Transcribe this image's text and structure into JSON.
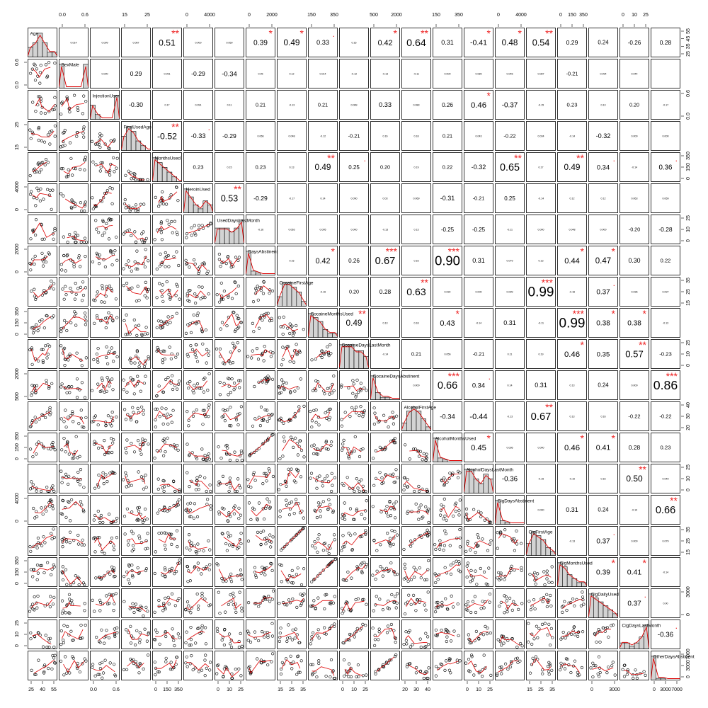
{
  "chart_data": {
    "type": "scatter",
    "title": "",
    "variables": [
      {
        "label": "Age",
        "ticks": [
          "25",
          "40",
          "55"
        ],
        "ticks_side": "bottom",
        "hist": [
          2,
          3,
          5,
          3,
          1,
          1
        ]
      },
      {
        "label": "SexMale",
        "ticks": [
          "0.0",
          "0.6"
        ],
        "ticks_side": "top",
        "hist": [
          4,
          0,
          0,
          0,
          0,
          4
        ]
      },
      {
        "label": "InjectionUser",
        "ticks": [
          "0.0",
          "0.6"
        ],
        "ticks_side": "right",
        "hist": [
          3,
          1,
          0,
          0,
          0,
          5
        ]
      },
      {
        "label": "FirstUsedAge",
        "ticks": [
          "15",
          "25"
        ],
        "ticks_side": "top",
        "hist": [
          3,
          5,
          4,
          2,
          1,
          0
        ]
      },
      {
        "label": "MonthsUsed",
        "ticks": [
          "0",
          "150",
          "350"
        ],
        "ticks_side": "bottom",
        "hist": [
          5,
          4,
          3,
          2,
          1,
          0
        ]
      },
      {
        "label": "HeroinUsed",
        "ticks": [
          "0",
          "4000"
        ],
        "ticks_side": "top",
        "hist": [
          6,
          4,
          2,
          1,
          3,
          2
        ]
      },
      {
        "label": "UsedDaysLastMonth",
        "ticks": [
          "0",
          "10",
          "25"
        ],
        "ticks_side": "bottom",
        "hist": [
          4,
          4,
          4,
          3,
          4,
          6
        ]
      },
      {
        "label": "DaysAbstinent",
        "ticks": [
          "0",
          "2000"
        ],
        "ticks_side": "top",
        "hist": [
          12,
          2,
          1,
          0,
          0,
          0
        ]
      },
      {
        "label": "CocaineFirstAge",
        "ticks": [
          "15",
          "25",
          "35"
        ],
        "ticks_side": "bottom",
        "hist": [
          2,
          5,
          5,
          4,
          3,
          1
        ]
      },
      {
        "label": "CocaineMonthsUsed",
        "ticks": [
          "150",
          "350"
        ],
        "ticks_side": "top",
        "hist": [
          6,
          5,
          4,
          2,
          1,
          1
        ]
      },
      {
        "label": "CocaineDaysLastMonth",
        "ticks": [
          "0",
          "10",
          "25"
        ],
        "ticks_side": "bottom",
        "hist": [
          4,
          4,
          4,
          3,
          3,
          2
        ]
      },
      {
        "label": "CocaineDaysAbstinent",
        "ticks": [
          "500",
          "2000"
        ],
        "ticks_side": "top",
        "hist": [
          10,
          3,
          1,
          1,
          0,
          0
        ]
      },
      {
        "label": "AlcoholFirstAge",
        "ticks": [
          "20",
          "30",
          "40"
        ],
        "ticks_side": "bottom",
        "hist": [
          2,
          5,
          6,
          5,
          3,
          1
        ]
      },
      {
        "label": "AlcoholMonthsUsed",
        "ticks": [
          "150",
          "350"
        ],
        "ticks_side": "top",
        "hist": [
          12,
          2,
          1,
          0,
          0,
          0
        ]
      },
      {
        "label": "AlcoholDaysLastMonth",
        "ticks": [
          "0",
          "10",
          "25"
        ],
        "ticks_side": "bottom",
        "hist": [
          5,
          5,
          3,
          2,
          4,
          3
        ]
      },
      {
        "label": "CigDaysAbstinent",
        "ticks": [
          "0",
          "4000"
        ],
        "ticks_side": "top",
        "hist": [
          14,
          2,
          1,
          0,
          0,
          0
        ]
      },
      {
        "label": "CigFirstAge",
        "ticks": [
          "15",
          "25",
          "35"
        ],
        "ticks_side": "bottom",
        "hist": [
          3,
          6,
          5,
          4,
          2,
          1
        ]
      },
      {
        "label": "CigMonthsUsed",
        "ticks": [
          "0",
          "150",
          "350"
        ],
        "ticks_side": "top",
        "hist": [
          6,
          5,
          3,
          2,
          1,
          1
        ]
      },
      {
        "label": "CigDailyUsed",
        "ticks": [
          "0",
          "3000"
        ],
        "ticks_side": "right",
        "hist": [
          6,
          5,
          4,
          3,
          2,
          1
        ]
      },
      {
        "label": "CigDaysLastMonth",
        "ticks": [
          "0",
          "10",
          "25"
        ],
        "ticks_side": "top",
        "hist": [
          2,
          2,
          1,
          2,
          4,
          8
        ]
      },
      {
        "label": "OtherDaysAbstinent",
        "ticks": [
          "0",
          "3000",
          "7000"
        ],
        "ticks_side": "bottom",
        "hist": [
          14,
          1,
          1,
          0,
          0,
          0
        ]
      }
    ],
    "right_axis_ticks": [
      [
        "55",
        "45",
        "35",
        "25"
      ],
      [
        "0.6",
        "0.0"
      ],
      [
        "0.6",
        "0.0"
      ],
      [
        "25",
        "15"
      ],
      [
        "350",
        "150",
        "0"
      ],
      [
        "4000",
        "0"
      ],
      [
        "25",
        "10",
        "0"
      ],
      [
        "2000",
        "0"
      ],
      [
        "35",
        "25",
        "15"
      ],
      [
        "350",
        "150",
        "0"
      ],
      [
        "25",
        "10",
        "0"
      ],
      [
        "2000",
        "500"
      ],
      [
        "40",
        "30",
        "20"
      ],
      [
        "350",
        "150",
        "0"
      ],
      [
        "25",
        "10",
        "0"
      ],
      [
        "4000",
        "0"
      ],
      [
        "35",
        "25",
        "15"
      ],
      [
        "350",
        "150",
        "0"
      ],
      [
        "3000",
        "0"
      ],
      [
        "25",
        "10",
        "0"
      ],
      [
        "7000",
        "3000",
        "0"
      ]
    ],
    "correlations": [
      [
        null,
        "0.014",
        "0.099",
        "0.067",
        "0.51",
        "0.000",
        "0.050",
        "0.39",
        "0.49",
        "0.33",
        "0.16",
        "0.42",
        "0.64",
        "0.31",
        "-0.41",
        "0.48",
        "0.54",
        "0.29",
        "0.24",
        "-0.26",
        "0.28"
      ],
      [
        null,
        null,
        "0.000",
        "0.29",
        "0.091",
        "-0.29",
        "-0.34",
        "0.05",
        "0.12",
        "0.014",
        "-0.12",
        "-0.13",
        "-0.11",
        "0.000",
        "0.089",
        "0.046",
        "0.087",
        "-0.21",
        "0.094",
        "0.044",
        null
      ],
      [
        null,
        null,
        null,
        "-0.30",
        "0.17",
        "0.091",
        "0.11",
        "0.21",
        "-0.13",
        "0.21",
        "0.089",
        "0.33",
        "0.083",
        "0.26",
        "0.46",
        "-0.37",
        "-0.15",
        "0.23",
        "0.13",
        "0.20",
        "-0.17"
      ],
      [
        null,
        null,
        null,
        null,
        "-0.52",
        "-0.33",
        "-0.29",
        "0.066",
        "0.048",
        "-0.12",
        "-0.21",
        "0.16",
        "0.18",
        "0.21",
        "0.043",
        "-0.22",
        "0.034",
        "-0.14",
        "-0.32",
        "0.000",
        "0.000"
      ],
      [
        null,
        null,
        null,
        null,
        null,
        "0.23",
        "0.15",
        "0.23",
        "0.13",
        "0.49",
        "0.25",
        "0.20",
        "0.19",
        "0.22",
        "-0.32",
        "0.65",
        "0.17",
        "0.49",
        "0.34",
        "-0.14",
        "0.36"
      ],
      [
        null,
        null,
        null,
        null,
        null,
        null,
        "0.53",
        "-0.29",
        "-0.17",
        "0.14",
        "0.090",
        "0.03",
        "0.069",
        "-0.31",
        "-0.21",
        "0.25",
        "-0.14",
        "0.12",
        "0.12",
        "0.063",
        "0.069"
      ],
      [
        null,
        null,
        null,
        null,
        null,
        null,
        null,
        "-0.16",
        "0.063",
        "0.005",
        "0.000",
        "-0.13",
        "0.13",
        "-0.25",
        "-0.25",
        "-0.11",
        "0.000",
        "0.048",
        "0.000",
        "-0.20",
        "-0.28"
      ],
      [
        null,
        null,
        null,
        null,
        null,
        null,
        null,
        null,
        "0.16",
        "0.42",
        "0.26",
        "0.67",
        "0.16",
        "0.90",
        "0.31",
        "0.079",
        "0.13",
        "0.44",
        "0.47",
        "0.30",
        "0.22"
      ],
      [
        null,
        null,
        null,
        null,
        null,
        null,
        null,
        null,
        null,
        "-0.16",
        "0.20",
        "0.28",
        "0.63",
        "0.034",
        "0.000",
        "0.099",
        "0.99",
        "-0.16",
        "0.37",
        "0.036",
        "0.097"
      ],
      [
        null,
        null,
        null,
        null,
        null,
        null,
        null,
        null,
        null,
        null,
        "0.49",
        "0.13",
        "0.18",
        "0.43",
        "-0.14",
        "0.31",
        "-0.11",
        "0.99",
        "0.38",
        "0.38",
        "-0.13"
      ],
      [
        null,
        null,
        null,
        null,
        null,
        null,
        null,
        null,
        null,
        null,
        null,
        "-0.14",
        "0.21",
        "0.056",
        "-0.21",
        "0.11",
        "0.19",
        "0.46",
        "0.35",
        "0.57",
        "-0.23"
      ],
      [
        null,
        null,
        null,
        null,
        null,
        null,
        null,
        null,
        null,
        null,
        null,
        null,
        "0.000",
        "0.66",
        "0.34",
        "0.14",
        "0.31",
        "0.13",
        "0.24",
        "0.000",
        "0.86"
      ],
      [
        null,
        null,
        null,
        null,
        null,
        null,
        null,
        null,
        null,
        null,
        null,
        null,
        null,
        "-0.34",
        "-0.44",
        "-0.13",
        "0.67",
        "0.13",
        "0.16",
        "-0.22",
        "-0.22"
      ],
      [
        null,
        null,
        null,
        null,
        null,
        null,
        null,
        null,
        null,
        null,
        null,
        null,
        null,
        null,
        "0.45",
        "0.036",
        "0.000",
        "0.46",
        "0.41",
        "0.28",
        "0.23"
      ],
      [
        null,
        null,
        null,
        null,
        null,
        null,
        null,
        null,
        null,
        null,
        null,
        null,
        null,
        null,
        null,
        "-0.36",
        "-0.15",
        "-0.10",
        "0.16",
        "0.50",
        "0.049"
      ],
      [
        null,
        null,
        null,
        null,
        null,
        null,
        null,
        null,
        null,
        null,
        null,
        null,
        null,
        null,
        null,
        null,
        "0.000",
        "0.31",
        "0.24",
        "-0.19",
        "0.66"
      ],
      [
        null,
        null,
        null,
        null,
        null,
        null,
        null,
        null,
        null,
        null,
        null,
        null,
        null,
        null,
        null,
        null,
        null,
        "-0.13",
        "0.37",
        "0.000",
        "0.079"
      ],
      [
        null,
        null,
        null,
        null,
        null,
        null,
        null,
        null,
        null,
        null,
        null,
        null,
        null,
        null,
        null,
        null,
        null,
        null,
        "0.39",
        "0.41",
        "-0.14"
      ],
      [
        null,
        null,
        null,
        null,
        null,
        null,
        null,
        null,
        null,
        null,
        null,
        null,
        null,
        null,
        null,
        null,
        null,
        null,
        null,
        "0.37",
        "0.00"
      ],
      [
        null,
        null,
        null,
        null,
        null,
        null,
        null,
        null,
        null,
        null,
        null,
        null,
        null,
        null,
        null,
        null,
        null,
        null,
        null,
        null,
        "-0.36"
      ],
      [
        null,
        null,
        null,
        null,
        null,
        null,
        null,
        null,
        null,
        null,
        null,
        null,
        null,
        null,
        null,
        null,
        null,
        null,
        null,
        null,
        null
      ]
    ],
    "significance": {
      "0-4": "**",
      "0-7": "*",
      "0-8": "*",
      "0-9": ".",
      "0-11": "*",
      "0-12": "**",
      "0-14": "*",
      "0-15": "*",
      "0-16": "**",
      "2-14": "*",
      "3-4": "**",
      "3-5": ".",
      "4-9": "**",
      "4-10": ".",
      "4-15": "**",
      "4-17": "**",
      "4-18": ".",
      "4-20": ".",
      "5-6": "**",
      "7-9": "*",
      "7-11": "***",
      "7-13": "***",
      "7-17": "*",
      "7-18": "*",
      "8-12": "**",
      "8-16": "***",
      "8-18": ".",
      "9-10": "**",
      "9-13": "*",
      "9-17": "***",
      "9-18": "*",
      "9-19": "*",
      "10-17": "*",
      "10-19": "**",
      "11-13": "***",
      "11-14": ".",
      "11-20": "***",
      "12-16": "**",
      "13-14": "*",
      "13-17": "*",
      "13-18": "*",
      "14-19": "**",
      "15-20": "**",
      "16-18": ".",
      "17-18": "*",
      "17-19": "*",
      "18-19": ".",
      "19-20": "."
    },
    "colors": {
      "smooth": "#dd0000",
      "stars": "#ee2222",
      "hist_fill": "#d3d3d3",
      "points": "#000000",
      "frame": "#000000"
    },
    "grid": false,
    "legend": "none"
  }
}
